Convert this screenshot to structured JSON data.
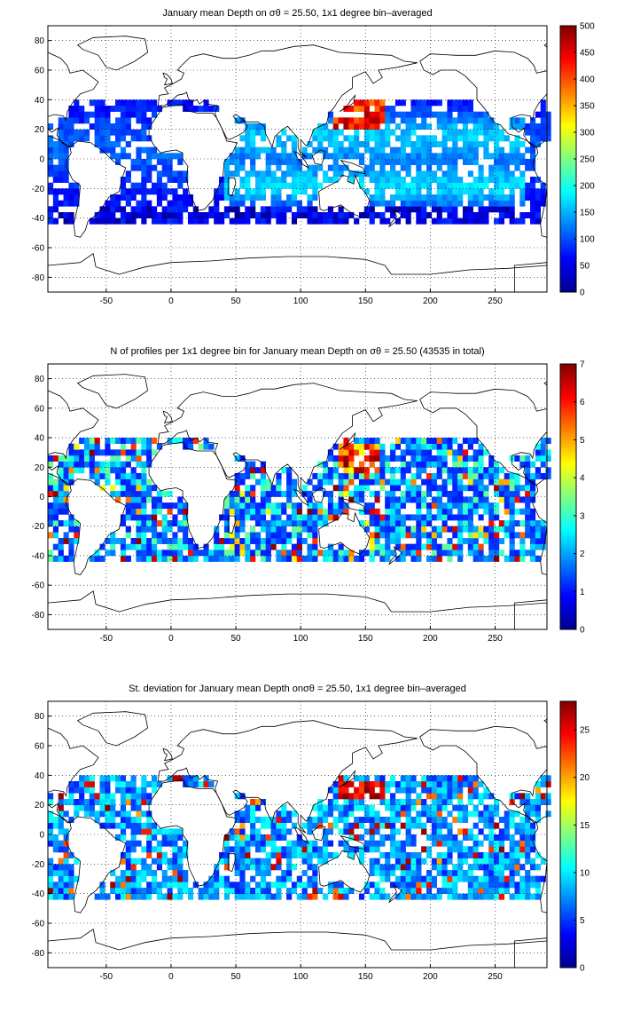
{
  "chart_data": [
    {
      "type": "heatmap",
      "title": "January mean Depth on σθ = 25.50, 1x1 degree bin–averaged",
      "x_ticks": [
        -50,
        0,
        50,
        100,
        150,
        200,
        250
      ],
      "y_ticks": [
        80,
        60,
        40,
        20,
        0,
        -20,
        -40,
        -60,
        -80
      ],
      "xlim": [
        -95,
        290
      ],
      "ylim": [
        -90,
        90
      ],
      "grid": true,
      "colorbar": {
        "min": 0,
        "max": 500,
        "ticks": [
          0,
          50,
          100,
          150,
          200,
          250,
          300,
          350,
          400,
          450,
          500
        ]
      }
    },
    {
      "type": "heatmap",
      "title": "N of profiles per 1x1 degree bin for January mean Depth on σθ = 25.50 (43535 in total)",
      "x_ticks": [
        -50,
        0,
        50,
        100,
        150,
        200,
        250
      ],
      "y_ticks": [
        80,
        60,
        40,
        20,
        0,
        -20,
        -40,
        -60,
        -80
      ],
      "xlim": [
        -95,
        290
      ],
      "ylim": [
        -90,
        90
      ],
      "grid": true,
      "colorbar": {
        "min": 0,
        "max": 7,
        "ticks": [
          0,
          1,
          2,
          3,
          4,
          5,
          6,
          7
        ]
      }
    },
    {
      "type": "heatmap",
      "title": "St. deviation for January mean Depth onσθ = 25.50, 1x1 degree bin–averaged",
      "x_ticks": [
        -50,
        0,
        50,
        100,
        150,
        200,
        250
      ],
      "y_ticks": [
        80,
        60,
        40,
        20,
        0,
        -20,
        -40,
        -60,
        -80
      ],
      "xlim": [
        -95,
        290
      ],
      "ylim": [
        -90,
        90
      ],
      "grid": true,
      "colorbar": {
        "min": 0,
        "max": 28,
        "ticks": [
          0,
          5,
          10,
          15,
          20,
          25
        ]
      }
    }
  ]
}
